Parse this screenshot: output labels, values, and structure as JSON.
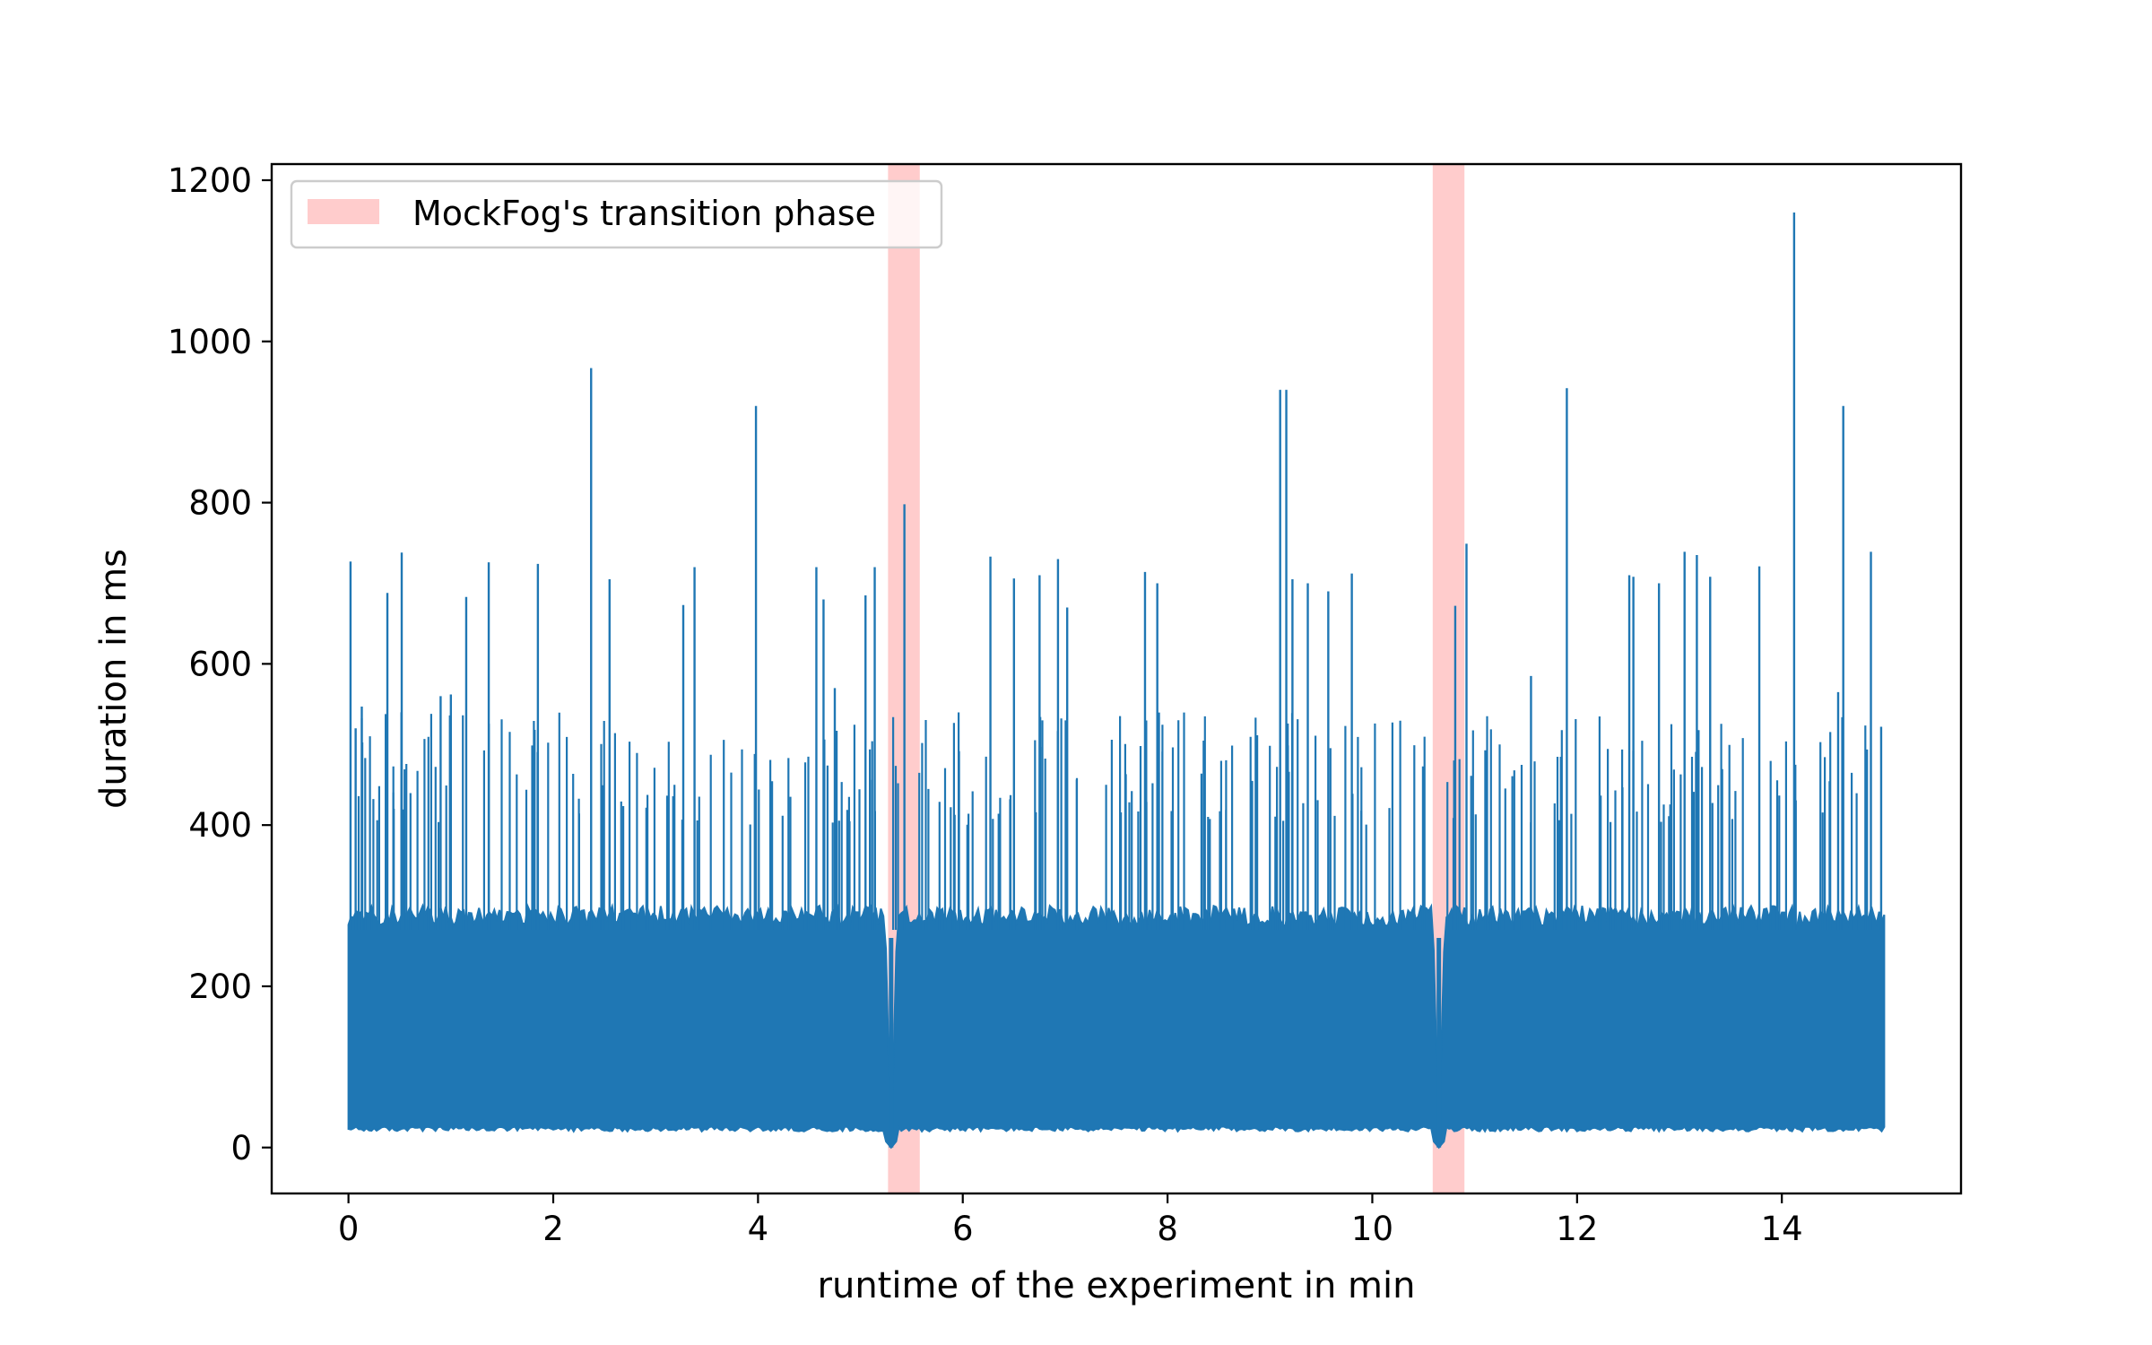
{
  "chart_data": {
    "type": "line",
    "title": "",
    "xlabel": "runtime of the experiment in min",
    "ylabel": "duration in ms",
    "xlim": [
      -0.75,
      15.75
    ],
    "ylim": [
      -57,
      1220
    ],
    "x_ticks": [
      0,
      2,
      4,
      6,
      8,
      10,
      12,
      14
    ],
    "x_tick_labels": [
      "0",
      "2",
      "4",
      "6",
      "8",
      "10",
      "12",
      "14"
    ],
    "y_ticks": [
      0,
      200,
      400,
      600,
      800,
      1000,
      1200
    ],
    "y_tick_labels": [
      "0",
      "200",
      "400",
      "600",
      "800",
      "1000",
      "1200"
    ],
    "grid": false,
    "legend_position": "top-left",
    "legend": [
      {
        "label": "MockFog's transition phase",
        "color": "#ffcccc"
      }
    ],
    "shaded_regions": [
      {
        "label": "MockFog's transition phase",
        "x_start": 5.27,
        "x_end": 5.58,
        "color": "#ffcccc"
      },
      {
        "label": "MockFog's transition phase",
        "x_start": 10.59,
        "x_end": 10.9,
        "color": "#ffcccc"
      }
    ],
    "series": [
      {
        "color": "#1f77b4",
        "x_range": [
          0,
          15
        ],
        "dense_band": {
          "low": 20,
          "high": 300
        },
        "spikes": [
          {
            "x": 0.02,
            "y": 727
          },
          {
            "x": 0.07,
            "y": 520
          },
          {
            "x": 0.13,
            "y": 547
          },
          {
            "x": 0.38,
            "y": 688
          },
          {
            "x": 0.52,
            "y": 738
          },
          {
            "x": 0.9,
            "y": 560
          },
          {
            "x": 1.0,
            "y": 562
          },
          {
            "x": 1.15,
            "y": 683
          },
          {
            "x": 1.37,
            "y": 726
          },
          {
            "x": 1.85,
            "y": 724
          },
          {
            "x": 2.37,
            "y": 967
          },
          {
            "x": 2.55,
            "y": 705
          },
          {
            "x": 3.27,
            "y": 673
          },
          {
            "x": 3.38,
            "y": 720
          },
          {
            "x": 3.98,
            "y": 920
          },
          {
            "x": 4.57,
            "y": 720
          },
          {
            "x": 4.64,
            "y": 680
          },
          {
            "x": 4.75,
            "y": 570
          },
          {
            "x": 5.05,
            "y": 685
          },
          {
            "x": 5.14,
            "y": 720
          },
          {
            "x": 5.43,
            "y": 798
          },
          {
            "x": 6.27,
            "y": 733
          },
          {
            "x": 6.5,
            "y": 706
          },
          {
            "x": 6.75,
            "y": 710
          },
          {
            "x": 6.93,
            "y": 730
          },
          {
            "x": 7.02,
            "y": 670
          },
          {
            "x": 7.78,
            "y": 714
          },
          {
            "x": 7.9,
            "y": 700
          },
          {
            "x": 9.1,
            "y": 940
          },
          {
            "x": 9.16,
            "y": 940
          },
          {
            "x": 9.22,
            "y": 705
          },
          {
            "x": 9.37,
            "y": 700
          },
          {
            "x": 9.57,
            "y": 690
          },
          {
            "x": 9.8,
            "y": 712
          },
          {
            "x": 10.81,
            "y": 672
          },
          {
            "x": 10.92,
            "y": 749
          },
          {
            "x": 11.55,
            "y": 585
          },
          {
            "x": 11.9,
            "y": 942
          },
          {
            "x": 12.51,
            "y": 710
          },
          {
            "x": 12.55,
            "y": 708
          },
          {
            "x": 12.8,
            "y": 700
          },
          {
            "x": 13.05,
            "y": 739
          },
          {
            "x": 13.17,
            "y": 735
          },
          {
            "x": 13.3,
            "y": 708
          },
          {
            "x": 13.78,
            "y": 721
          },
          {
            "x": 14.12,
            "y": 1160
          },
          {
            "x": 14.6,
            "y": 920
          },
          {
            "x": 14.87,
            "y": 739
          },
          {
            "x": 14.55,
            "y": 565
          },
          {
            "x": 14.97,
            "y": 522
          }
        ],
        "secondary_spike_band": {
          "low": 400,
          "high": 540
        },
        "dips": [
          {
            "x": 5.3,
            "y": 0
          },
          {
            "x": 10.65,
            "y": 0
          }
        ]
      }
    ]
  }
}
